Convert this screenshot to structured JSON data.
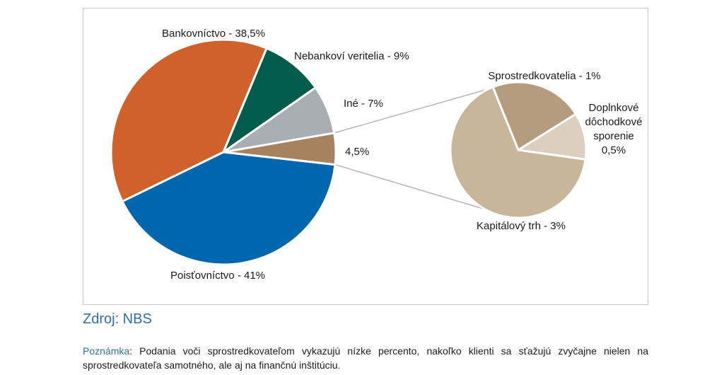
{
  "chart_data": [
    {
      "type": "pie",
      "categories": [
        "Bankovníctvo",
        "Nebankoví veritelia",
        "Iné",
        "",
        "Poisťovníctvo"
      ],
      "values": [
        38.5,
        9,
        7,
        4.5,
        41
      ],
      "labels": [
        "Bankovníctvo - 38,5%",
        "Nebankoví veritelia - 9%",
        "Iné - 7%",
        "4,5%",
        "Poisťovníctvo - 41%"
      ],
      "colors": [
        "#d0612a",
        "#015c4e",
        "#a8afb3",
        "#a6825e",
        "#0066ad"
      ]
    },
    {
      "type": "pie",
      "categories": [
        "Sprostredkovatelia",
        "Doplnkové dôchodkové sporenie",
        "Kapitálový trh"
      ],
      "values": [
        1,
        0.5,
        3
      ],
      "labels": [
        "Sprostredkovatelia - 1%",
        [
          "Doplnkové",
          "dôchodkové",
          "sporenie",
          "0,5%"
        ],
        "Kapitálový trh  - 3%"
      ],
      "colors": [
        "#b69c7e",
        "#dccfc0",
        "#c8b69b"
      ]
    }
  ],
  "source": "Zdroj: NBS",
  "note": {
    "label": "Poznámka",
    "text": ": Podania voči sprostredkovateľom vykazujú nízke percento, nakoľko klienti sa sťažujú zvyčajne nielen na sprostredkovateľa samotného, ale aj na finančnú inštitúciu."
  }
}
